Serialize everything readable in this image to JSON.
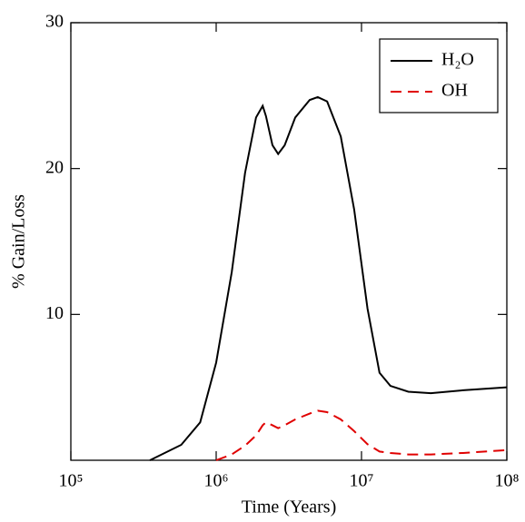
{
  "chart_data": {
    "type": "line",
    "x_label": "Time (Years)",
    "y_label": "% Gain/Loss",
    "xscale": "log",
    "x": [
      350000,
      575000,
      776000,
      1000000,
      1280000,
      1580000,
      1880000,
      2090000,
      2200000,
      2440000,
      2670000,
      2960000,
      3500000,
      4400000,
      5000000,
      5800000,
      7200000,
      8900000,
      11000000,
      13300000,
      15800000,
      21000000,
      30000000,
      50000000,
      100000000
    ],
    "series": [
      {
        "name": "H₂O",
        "color": "#000000",
        "dash": "solid",
        "values": [
          0,
          1.06,
          2.6,
          6.7,
          12.9,
          19.7,
          23.5,
          24.3,
          23.6,
          21.6,
          21.0,
          21.6,
          23.5,
          24.7,
          24.9,
          24.6,
          22.2,
          17.2,
          10.4,
          6.0,
          5.1,
          4.7,
          4.6,
          4.8,
          5.0
        ]
      },
      {
        "name": "OH",
        "color": "#e00000",
        "dash": "dashed",
        "values": [
          null,
          null,
          null,
          0,
          0.4,
          1.0,
          1.7,
          2.4,
          2.6,
          2.4,
          2.2,
          2.4,
          2.8,
          3.2,
          3.4,
          3.3,
          2.8,
          2.0,
          1.1,
          0.6,
          0.5,
          0.4,
          0.4,
          0.5,
          0.7
        ]
      }
    ],
    "xlim": [
      100000,
      100000000
    ],
    "xticks": [
      {
        "value": 100000,
        "label": "10⁵"
      },
      {
        "value": 1000000,
        "label": "10⁶"
      },
      {
        "value": 10000000,
        "label": "10⁷"
      },
      {
        "value": 100000000,
        "label": "10⁸"
      }
    ],
    "ylim": [
      0,
      30
    ],
    "yticks": [
      10,
      20,
      30
    ],
    "legend": "upper right"
  }
}
